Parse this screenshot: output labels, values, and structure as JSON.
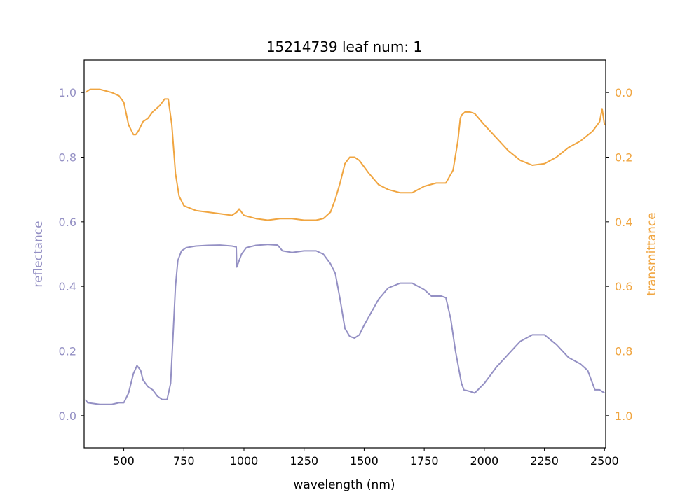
{
  "chart_data": {
    "type": "line",
    "title": "15214739 leaf num: 1",
    "xlabel": "wavelength (nm)",
    "xlim": [
      335,
      2505
    ],
    "x_ticks": [
      500,
      750,
      1000,
      1250,
      1500,
      1750,
      2000,
      2250,
      2500
    ],
    "grid": false,
    "left_axis": {
      "label": "reflectance",
      "ylim": [
        -0.1,
        1.1
      ],
      "ticks": [
        0.0,
        0.2,
        0.4,
        0.6,
        0.8,
        1.0
      ],
      "tick_labels": [
        "0.0",
        "0.2",
        "0.4",
        "0.6",
        "0.8",
        "1.0"
      ],
      "color": "#9490c4"
    },
    "right_axis": {
      "label": "transmittance",
      "ylim": [
        1.1,
        -0.1
      ],
      "inverted": true,
      "ticks": [
        0.0,
        0.2,
        0.4,
        0.6,
        0.8,
        1.0
      ],
      "tick_labels": [
        "0.0",
        "0.2",
        "0.4",
        "0.6",
        "0.8",
        "1.0"
      ],
      "color": "#f0a540"
    },
    "series": [
      {
        "name": "reflectance",
        "axis": "left",
        "color": "#9490c4",
        "points": [
          [
            340,
            0.05
          ],
          [
            350,
            0.04
          ],
          [
            400,
            0.035
          ],
          [
            450,
            0.035
          ],
          [
            480,
            0.04
          ],
          [
            500,
            0.04
          ],
          [
            520,
            0.07
          ],
          [
            540,
            0.13
          ],
          [
            555,
            0.155
          ],
          [
            570,
            0.14
          ],
          [
            580,
            0.11
          ],
          [
            600,
            0.09
          ],
          [
            620,
            0.08
          ],
          [
            640,
            0.06
          ],
          [
            660,
            0.05
          ],
          [
            680,
            0.05
          ],
          [
            695,
            0.1
          ],
          [
            705,
            0.25
          ],
          [
            715,
            0.4
          ],
          [
            725,
            0.48
          ],
          [
            740,
            0.51
          ],
          [
            760,
            0.52
          ],
          [
            800,
            0.525
          ],
          [
            850,
            0.527
          ],
          [
            900,
            0.528
          ],
          [
            950,
            0.525
          ],
          [
            968,
            0.522
          ],
          [
            970,
            0.46
          ],
          [
            990,
            0.5
          ],
          [
            1010,
            0.52
          ],
          [
            1050,
            0.527
          ],
          [
            1100,
            0.53
          ],
          [
            1140,
            0.528
          ],
          [
            1160,
            0.51
          ],
          [
            1200,
            0.505
          ],
          [
            1250,
            0.51
          ],
          [
            1300,
            0.51
          ],
          [
            1330,
            0.5
          ],
          [
            1360,
            0.47
          ],
          [
            1380,
            0.44
          ],
          [
            1400,
            0.36
          ],
          [
            1420,
            0.27
          ],
          [
            1440,
            0.245
          ],
          [
            1460,
            0.24
          ],
          [
            1480,
            0.25
          ],
          [
            1500,
            0.28
          ],
          [
            1530,
            0.32
          ],
          [
            1560,
            0.36
          ],
          [
            1600,
            0.395
          ],
          [
            1650,
            0.41
          ],
          [
            1700,
            0.41
          ],
          [
            1750,
            0.39
          ],
          [
            1780,
            0.37
          ],
          [
            1820,
            0.37
          ],
          [
            1840,
            0.365
          ],
          [
            1860,
            0.3
          ],
          [
            1880,
            0.2
          ],
          [
            1900,
            0.12
          ],
          [
            1905,
            0.1
          ],
          [
            1915,
            0.08
          ],
          [
            1940,
            0.075
          ],
          [
            1960,
            0.07
          ],
          [
            2000,
            0.1
          ],
          [
            2050,
            0.15
          ],
          [
            2100,
            0.19
          ],
          [
            2150,
            0.23
          ],
          [
            2200,
            0.25
          ],
          [
            2250,
            0.25
          ],
          [
            2300,
            0.22
          ],
          [
            2350,
            0.18
          ],
          [
            2400,
            0.16
          ],
          [
            2430,
            0.14
          ],
          [
            2460,
            0.08
          ],
          [
            2480,
            0.08
          ],
          [
            2500,
            0.07
          ]
        ]
      },
      {
        "name": "transmittance",
        "axis": "right",
        "color": "#f0a540",
        "points": [
          [
            340,
            0.0
          ],
          [
            360,
            -0.01
          ],
          [
            400,
            -0.01
          ],
          [
            450,
            0.0
          ],
          [
            480,
            0.01
          ],
          [
            500,
            0.03
          ],
          [
            520,
            0.1
          ],
          [
            540,
            0.13
          ],
          [
            550,
            0.13
          ],
          [
            560,
            0.12
          ],
          [
            580,
            0.09
          ],
          [
            600,
            0.08
          ],
          [
            620,
            0.06
          ],
          [
            650,
            0.04
          ],
          [
            670,
            0.02
          ],
          [
            685,
            0.02
          ],
          [
            700,
            0.1
          ],
          [
            715,
            0.25
          ],
          [
            730,
            0.32
          ],
          [
            750,
            0.35
          ],
          [
            800,
            0.365
          ],
          [
            850,
            0.37
          ],
          [
            900,
            0.375
          ],
          [
            950,
            0.38
          ],
          [
            970,
            0.37
          ],
          [
            980,
            0.36
          ],
          [
            1000,
            0.38
          ],
          [
            1050,
            0.39
          ],
          [
            1100,
            0.395
          ],
          [
            1150,
            0.39
          ],
          [
            1200,
            0.39
          ],
          [
            1250,
            0.395
          ],
          [
            1300,
            0.395
          ],
          [
            1330,
            0.39
          ],
          [
            1360,
            0.37
          ],
          [
            1380,
            0.33
          ],
          [
            1400,
            0.28
          ],
          [
            1420,
            0.22
          ],
          [
            1440,
            0.2
          ],
          [
            1460,
            0.2
          ],
          [
            1480,
            0.21
          ],
          [
            1520,
            0.25
          ],
          [
            1560,
            0.285
          ],
          [
            1600,
            0.3
          ],
          [
            1650,
            0.31
          ],
          [
            1700,
            0.31
          ],
          [
            1750,
            0.29
          ],
          [
            1800,
            0.28
          ],
          [
            1840,
            0.28
          ],
          [
            1870,
            0.24
          ],
          [
            1890,
            0.15
          ],
          [
            1900,
            0.08
          ],
          [
            1905,
            0.07
          ],
          [
            1920,
            0.06
          ],
          [
            1940,
            0.06
          ],
          [
            1960,
            0.065
          ],
          [
            2000,
            0.1
          ],
          [
            2050,
            0.14
          ],
          [
            2100,
            0.18
          ],
          [
            2150,
            0.21
          ],
          [
            2200,
            0.225
          ],
          [
            2250,
            0.22
          ],
          [
            2300,
            0.2
          ],
          [
            2350,
            0.17
          ],
          [
            2400,
            0.15
          ],
          [
            2450,
            0.12
          ],
          [
            2480,
            0.09
          ],
          [
            2490,
            0.05
          ],
          [
            2500,
            0.1
          ]
        ]
      }
    ]
  }
}
